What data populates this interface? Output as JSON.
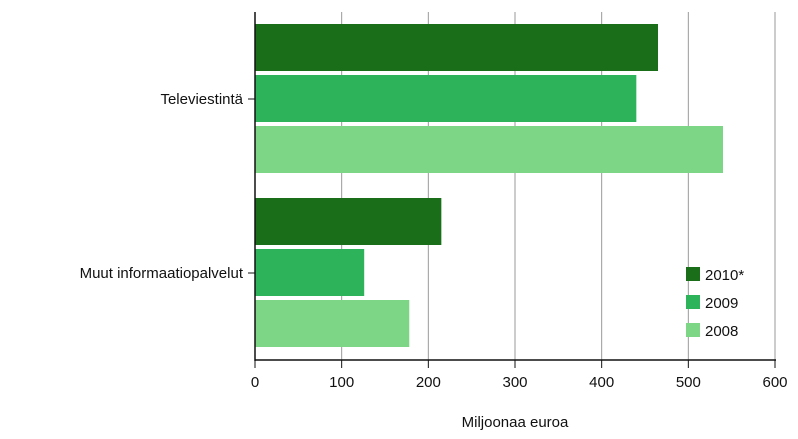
{
  "chart_data": {
    "type": "bar",
    "orientation": "horizontal",
    "categories": [
      "Televiestintä",
      "Muut informaatiopalvelut"
    ],
    "series": [
      {
        "name": "2010*",
        "color": "#1a6e1a",
        "values": [
          465,
          215
        ]
      },
      {
        "name": "2009",
        "color": "#2db35a",
        "values": [
          440,
          126
        ]
      },
      {
        "name": "2008",
        "color": "#7dd685",
        "values": [
          540,
          178
        ]
      }
    ],
    "xlabel": "Miljoonaa euroa",
    "xlim": [
      0,
      600
    ],
    "xticks": [
      "0",
      "100",
      "200",
      "300",
      "400",
      "500",
      "600"
    ],
    "grid": "vertical",
    "legend": "bottom-right"
  }
}
